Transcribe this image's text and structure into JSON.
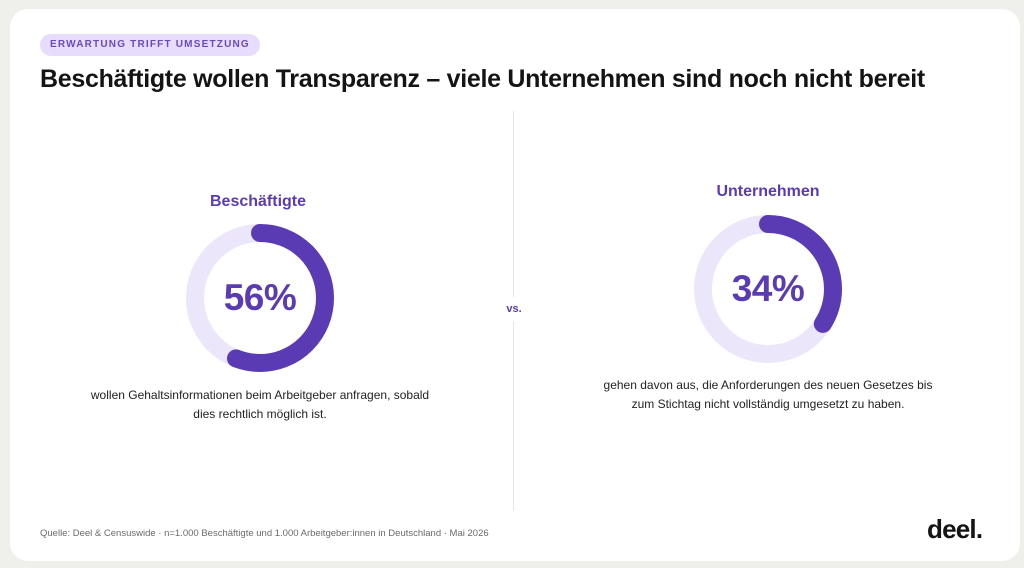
{
  "header": {
    "tag": "ERWARTUNG TRIFFT UMSETZUNG",
    "title": "Beschäftigte wollen Transparenz – viele Unternehmen sind noch nicht bereit"
  },
  "separator_label": "vs.",
  "chart_data": [
    {
      "type": "pie",
      "title": "Beschäftigte",
      "value": 56,
      "value_label": "56%",
      "unit": "%",
      "description": "wollen Gehaltsinformationen beim Arbeitgeber anfragen, sobald dies rechtlich möglich ist."
    },
    {
      "type": "pie",
      "title": "Unternehmen",
      "value": 34,
      "value_label": "34%",
      "unit": "%",
      "description": "gehen davon aus, die Anforderungen des neuen Gesetzes bis zum Stichtag nicht vollständig umgesetzt zu haben."
    }
  ],
  "colors": {
    "accent": "#5b3bb3",
    "ring_track": "#ece6fb",
    "tag_bg": "#e7dcfb"
  },
  "footer": {
    "source": "Quelle: Deel & Censuswide · n=1.000 Beschäftigte und 1.000 Arbeitgeber:innen in Deutschland · Mai 2026",
    "logo": "deel."
  }
}
